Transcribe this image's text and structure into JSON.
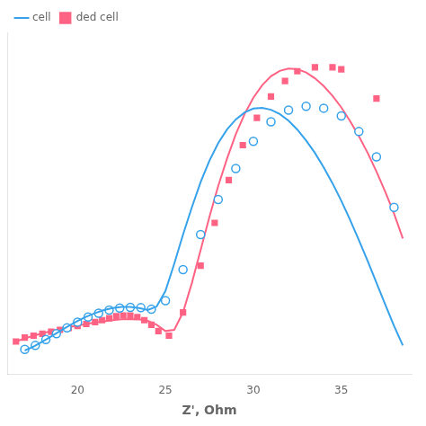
{
  "chart_data": {
    "type": "scatter",
    "x_label": "Z', Ohm",
    "xlim": [
      16.0,
      39.0
    ],
    "ylim": [
      -0.3,
      8.5
    ],
    "xticks": [
      20,
      25,
      30,
      35
    ],
    "tick_labels": "x",
    "grid": false,
    "legend": "upper left",
    "series": [
      {
        "name": "cell",
        "type": "line",
        "line_style": "solid",
        "x": [
          17.0,
          17.5,
          18.0,
          18.5,
          19.0,
          19.5,
          20.0,
          20.5,
          21.0,
          21.5,
          22.0,
          22.5,
          23.0,
          23.5,
          24.0,
          24.5,
          25.0,
          25.5,
          26.0,
          26.5,
          27.0,
          27.5,
          28.0,
          28.5,
          29.0,
          29.5,
          30.0,
          30.5,
          31.0,
          31.5,
          32.0,
          32.5,
          33.0,
          33.5,
          34.0,
          34.5,
          35.0,
          35.5,
          36.0,
          36.5,
          37.0,
          37.5,
          38.0,
          38.5
        ],
        "values": [
          0.32,
          0.42,
          0.55,
          0.68,
          0.82,
          0.95,
          1.08,
          1.19,
          1.28,
          1.36,
          1.41,
          1.44,
          1.44,
          1.41,
          1.36,
          1.45,
          1.85,
          2.55,
          3.3,
          4.0,
          4.65,
          5.2,
          5.65,
          6.0,
          6.26,
          6.44,
          6.54,
          6.56,
          6.51,
          6.4,
          6.23,
          6.0,
          5.72,
          5.4,
          5.03,
          4.62,
          4.17,
          3.68,
          3.16,
          2.62,
          2.06,
          1.5,
          0.95,
          0.45
        ]
      },
      {
        "type": "scatter",
        "marker": "circle",
        "x": [
          17.0,
          17.6,
          18.2,
          18.8,
          19.4,
          20.0,
          20.6,
          21.2,
          21.8,
          22.4,
          23.0,
          23.6,
          24.2,
          25.0,
          26.0,
          27.0,
          28.0,
          29.0,
          30.0,
          31.0,
          32.0,
          33.0,
          34.0,
          35.0,
          36.0,
          37.0,
          38.0
        ],
        "values": [
          0.35,
          0.45,
          0.6,
          0.75,
          0.9,
          1.05,
          1.18,
          1.28,
          1.36,
          1.41,
          1.43,
          1.42,
          1.38,
          1.6,
          2.4,
          3.3,
          4.2,
          5.0,
          5.7,
          6.2,
          6.5,
          6.6,
          6.55,
          6.35,
          5.95,
          5.3,
          4.0
        ]
      },
      {
        "type": "line",
        "line_style": "solid",
        "x": [
          16.5,
          17.0,
          17.5,
          18.0,
          18.5,
          19.0,
          19.5,
          20.0,
          20.5,
          21.0,
          21.5,
          22.0,
          22.5,
          23.0,
          23.5,
          24.0,
          24.5,
          25.0,
          25.5,
          26.0,
          26.5,
          27.0,
          27.5,
          28.0,
          28.5,
          29.0,
          29.5,
          30.0,
          30.5,
          31.0,
          31.5,
          32.0,
          32.5,
          33.0,
          33.5,
          34.0,
          34.5,
          35.0,
          35.5,
          36.0,
          36.5,
          37.0,
          37.5,
          38.0,
          38.5
        ],
        "values": [
          0.55,
          0.63,
          0.7,
          0.76,
          0.82,
          0.87,
          0.92,
          0.96,
          1.0,
          1.04,
          1.07,
          1.1,
          1.12,
          1.13,
          1.12,
          1.08,
          0.98,
          0.82,
          0.85,
          1.3,
          2.05,
          2.9,
          3.75,
          4.55,
          5.25,
          5.88,
          6.4,
          6.82,
          7.14,
          7.37,
          7.51,
          7.57,
          7.55,
          7.47,
          7.32,
          7.12,
          6.87,
          6.57,
          6.22,
          5.83,
          5.4,
          4.92,
          4.4,
          3.84,
          3.2
        ]
      },
      {
        "name": "ded cell",
        "type": "scatter",
        "marker": "square",
        "x": [
          16.5,
          17.0,
          17.5,
          18.0,
          18.5,
          19.0,
          19.5,
          20.0,
          20.5,
          21.0,
          21.4,
          21.8,
          22.2,
          22.6,
          23.0,
          23.4,
          23.8,
          24.2,
          24.6,
          25.2,
          26.0,
          27.0,
          27.8,
          28.6,
          29.4,
          30.2,
          31.0,
          31.8,
          32.5,
          33.5,
          34.5,
          35.0,
          37.0
        ],
        "values": [
          0.55,
          0.65,
          0.7,
          0.75,
          0.8,
          0.85,
          0.9,
          0.95,
          1.0,
          1.05,
          1.1,
          1.15,
          1.2,
          1.22,
          1.22,
          1.18,
          1.1,
          0.98,
          0.82,
          0.7,
          1.3,
          2.5,
          3.6,
          4.7,
          5.6,
          6.3,
          6.85,
          7.25,
          7.5,
          7.6,
          7.6,
          7.55,
          6.8
        ]
      }
    ]
  }
}
